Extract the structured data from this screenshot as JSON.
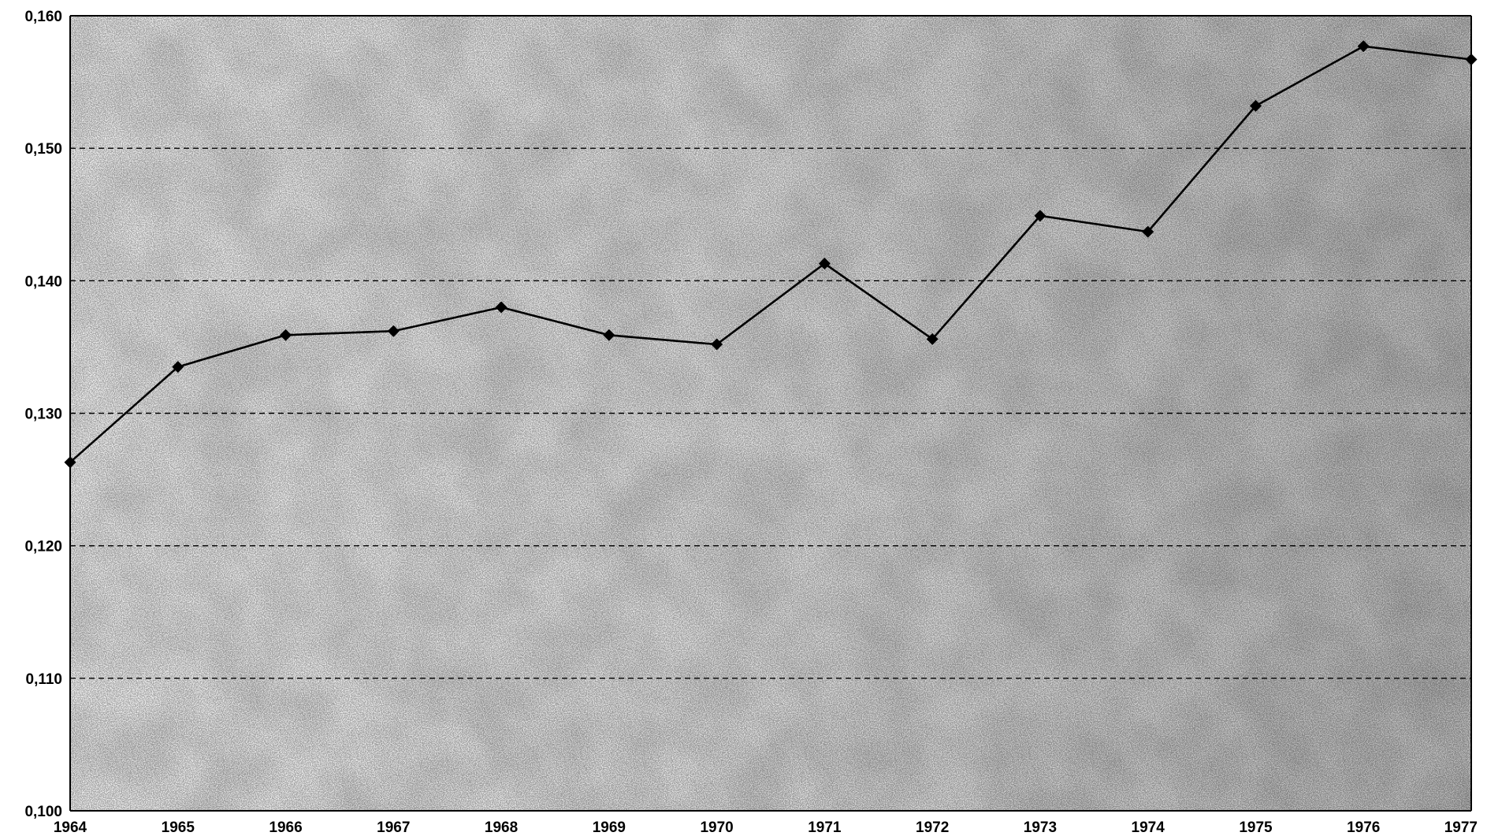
{
  "chart_data": {
    "type": "line",
    "title": "",
    "xlabel": "",
    "ylabel": "",
    "x": [
      "1964",
      "1965",
      "1966",
      "1967",
      "1968",
      "1969",
      "1970",
      "1971",
      "1972",
      "1973",
      "1974",
      "1975",
      "1976",
      "1977"
    ],
    "series": [
      {
        "values": [
          0.1263,
          0.1335,
          0.1359,
          0.1362,
          0.138,
          0.1359,
          0.1352,
          0.1413,
          0.1356,
          0.1449,
          0.1437,
          0.1532,
          0.1577,
          0.1567
        ],
        "marker": "diamond",
        "color": "#000000"
      }
    ],
    "ylim": [
      0.1,
      0.16
    ],
    "yticks": [
      "0,100",
      "0,110",
      "0,120",
      "0,130",
      "0,140",
      "0,150",
      "0,160"
    ],
    "grid": "horizontal dashed",
    "legend": "none",
    "background": "grey stippled texture"
  }
}
